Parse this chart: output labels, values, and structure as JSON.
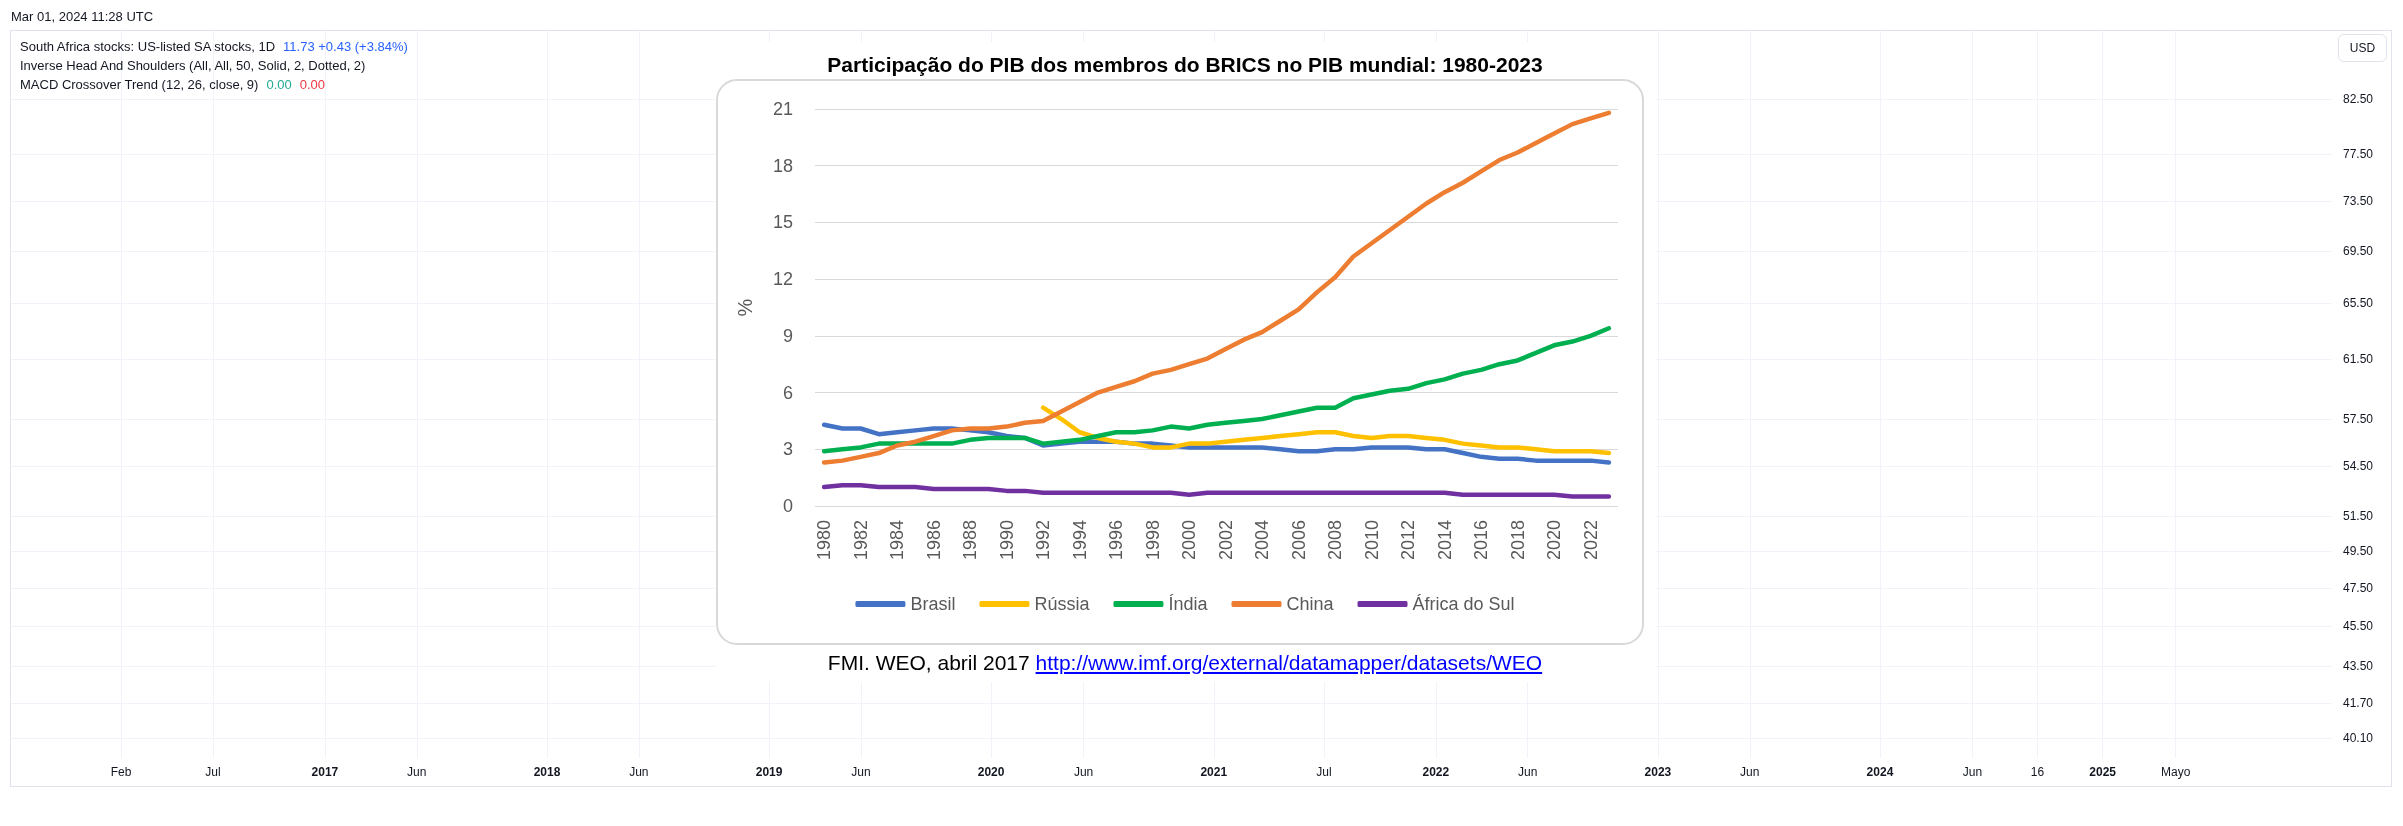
{
  "chart_data": [
    {
      "type": "line",
      "annotations": [
        "Mar 01, 2024 11:28 UTC",
        "South Africa stocks: US-listed SA stocks, 1D",
        "11.73 +0.43 (+3.84%)",
        "Inverse Head And Shoulders (All, All, 50, Solid, 2, Dotted, 2)",
        "MACD Crossover Trend (12, 26, close, 9)",
        "0.00",
        "0.00"
      ],
      "ylabel": "USD",
      "grid": true,
      "log": true,
      "xlim": [
        "2015-08-04",
        "2026-01-13"
      ],
      "xticks": [
        {
          "value": "2016-02",
          "label": "Feb"
        },
        {
          "value": "2016-07",
          "label": "Jul"
        },
        {
          "value": "2017",
          "label": "2017"
        },
        {
          "value": "2017-06",
          "label": "Jun"
        },
        {
          "value": "2018",
          "label": "2018"
        },
        {
          "value": "2018-06",
          "label": "Jun"
        },
        {
          "value": "2019",
          "label": "2019"
        },
        {
          "value": "2019-06",
          "label": "Jun"
        },
        {
          "value": "2020",
          "label": "2020"
        },
        {
          "value": "2020-06",
          "label": "Jun"
        },
        {
          "value": "2021",
          "label": "2021"
        },
        {
          "value": "2021-07",
          "label": "Jul"
        },
        {
          "value": "2022",
          "label": "2022"
        },
        {
          "value": "2022-06",
          "label": "Jun"
        },
        {
          "value": "2023",
          "label": "2023"
        },
        {
          "value": "2023-06",
          "label": "Jun"
        },
        {
          "value": "2024",
          "label": "2024"
        },
        {
          "value": "2024-06",
          "label": "Jun"
        },
        {
          "value": "2024-09-16",
          "label": "16"
        },
        {
          "value": "2025",
          "label": "2025"
        },
        {
          "value": "2025-05",
          "label": "Mayo"
        }
      ],
      "ylim": [
        39.2,
        89.2
      ],
      "yticks": [
        {
          "value": 40.1,
          "label": "40.10"
        },
        {
          "value": 41.7,
          "label": "41.70"
        },
        {
          "value": 43.5,
          "label": "43.50"
        },
        {
          "value": 45.5,
          "label": "45.50"
        },
        {
          "value": 47.5,
          "label": "47.50"
        },
        {
          "value": 49.5,
          "label": "49.50"
        },
        {
          "value": 51.5,
          "label": "51.50"
        },
        {
          "value": 54.5,
          "label": "54.50"
        },
        {
          "value": 57.5,
          "label": "57.50"
        },
        {
          "value": 61.5,
          "label": "61.50"
        },
        {
          "value": 65.5,
          "label": "65.50"
        },
        {
          "value": 69.5,
          "label": "69.50"
        },
        {
          "value": 73.5,
          "label": "73.50"
        },
        {
          "value": 77.5,
          "label": "77.50"
        },
        {
          "value": 82.5,
          "label": "82.50"
        }
      ]
    },
    {
      "type": "line",
      "title": "Participação do PIB dos membros do BRICS no PIB mundial: 1980-2023",
      "ylabel": "%",
      "annotations": [
        "FMI. WEO, abril 2017 http://www.imf.org/external/datamapper/datasets/WEO"
      ],
      "categories": [
        "1980",
        null,
        "1982",
        null,
        "1984",
        null,
        "1986",
        null,
        "1988",
        null,
        "1990",
        null,
        "1992",
        null,
        "1994",
        null,
        "1996",
        null,
        "1998",
        null,
        "2000",
        null,
        "2002",
        null,
        "2004",
        null,
        "2006",
        null,
        "2008",
        null,
        "2010",
        null,
        "2012",
        null,
        "2014",
        null,
        "2016",
        null,
        "2018",
        null,
        "2020",
        null,
        "2022",
        null
      ],
      "ylim": [
        0,
        21
      ],
      "yticks": [
        0,
        3,
        6,
        9,
        12,
        15,
        18,
        21
      ],
      "grid": "y",
      "legend": "bottom",
      "series": [
        {
          "name": "Brasil",
          "color": "#4472c4",
          "values": [
            4.3,
            4.1,
            4.1,
            3.8,
            3.9,
            4.0,
            4.1,
            4.1,
            4.0,
            3.9,
            3.7,
            3.6,
            3.2,
            3.3,
            3.4,
            3.4,
            3.4,
            3.3,
            3.3,
            3.2,
            3.1,
            3.1,
            3.1,
            3.1,
            3.1,
            3.0,
            2.9,
            2.9,
            3.0,
            3.0,
            3.1,
            3.1,
            3.1,
            3.0,
            3.0,
            2.8,
            2.6,
            2.5,
            2.5,
            2.4,
            2.4,
            2.4,
            2.4,
            2.3
          ]
        },
        {
          "name": "Rússia",
          "color": "#ffc000",
          "values": [
            null,
            null,
            null,
            null,
            null,
            null,
            null,
            null,
            null,
            null,
            null,
            null,
            5.2,
            4.6,
            3.9,
            3.6,
            3.4,
            3.3,
            3.1,
            3.1,
            3.3,
            3.3,
            3.4,
            3.5,
            3.6,
            3.7,
            3.8,
            3.9,
            3.9,
            3.7,
            3.6,
            3.7,
            3.7,
            3.6,
            3.5,
            3.3,
            3.2,
            3.1,
            3.1,
            3.0,
            2.9,
            2.9,
            2.9,
            2.8
          ]
        },
        {
          "name": "Índia",
          "color": "#00b050",
          "values": [
            2.9,
            3.0,
            3.1,
            3.3,
            3.3,
            3.3,
            3.3,
            3.3,
            3.5,
            3.6,
            3.6,
            3.6,
            3.3,
            3.4,
            3.5,
            3.7,
            3.9,
            3.9,
            4.0,
            4.2,
            4.1,
            4.3,
            4.4,
            4.5,
            4.6,
            4.8,
            5.0,
            5.2,
            5.2,
            5.7,
            5.9,
            6.1,
            6.2,
            6.5,
            6.7,
            7.0,
            7.2,
            7.5,
            7.7,
            8.1,
            8.5,
            8.7,
            9.0,
            9.4
          ]
        },
        {
          "name": "China",
          "color": "#ed7d31",
          "values": [
            2.3,
            2.4,
            2.6,
            2.8,
            3.2,
            3.4,
            3.7,
            4.0,
            4.1,
            4.1,
            4.2,
            4.4,
            4.5,
            5.0,
            5.5,
            6.0,
            6.3,
            6.6,
            7.0,
            7.2,
            7.5,
            7.8,
            8.3,
            8.8,
            9.2,
            9.8,
            10.4,
            11.3,
            12.1,
            13.2,
            13.9,
            14.6,
            15.3,
            16.0,
            16.6,
            17.1,
            17.7,
            18.3,
            18.7,
            19.2,
            19.7,
            20.2,
            20.5,
            20.8
          ]
        },
        {
          "name": "África do Sul",
          "color": "#7030a0",
          "values": [
            1.0,
            1.1,
            1.1,
            1.0,
            1.0,
            1.0,
            0.9,
            0.9,
            0.9,
            0.9,
            0.8,
            0.8,
            0.7,
            0.7,
            0.7,
            0.7,
            0.7,
            0.7,
            0.7,
            0.7,
            0.6,
            0.7,
            0.7,
            0.7,
            0.7,
            0.7,
            0.7,
            0.7,
            0.7,
            0.7,
            0.7,
            0.7,
            0.7,
            0.7,
            0.7,
            0.6,
            0.6,
            0.6,
            0.6,
            0.6,
            0.6,
            0.5,
            0.5,
            0.5
          ]
        }
      ]
    }
  ]
}
